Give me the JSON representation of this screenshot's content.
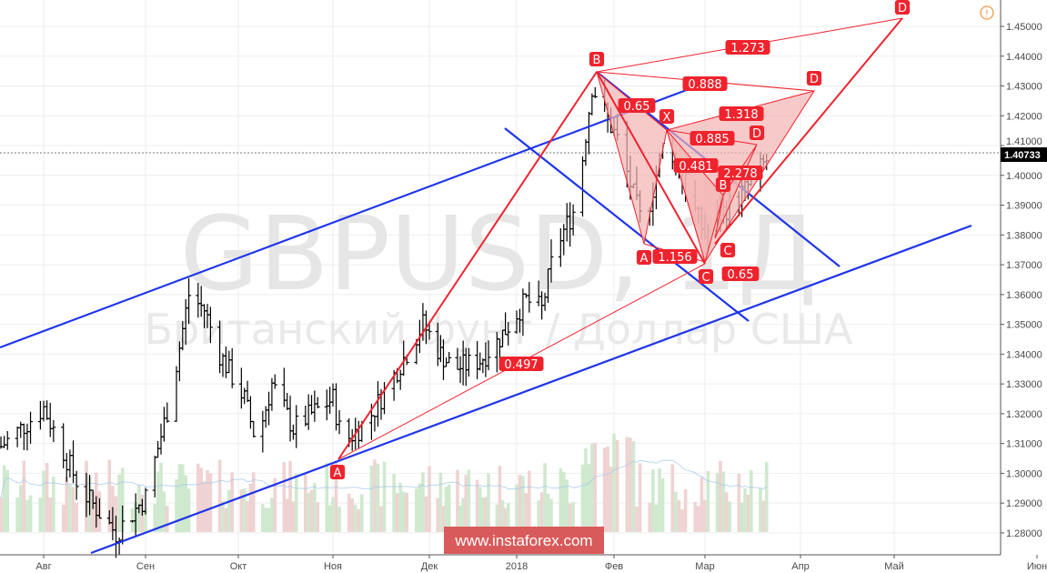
{
  "watermark": {
    "symbol": "GBPUSD, 1Д",
    "description": "Британский фунт / Доллар США"
  },
  "banner": {
    "text": "www.instaforex.com",
    "color": "#d95a5a"
  },
  "alert_icon": "exclamation-circle-icon",
  "colors": {
    "channel": "#1f35e8",
    "pattern": "#f0232d",
    "pattern_fill": "#f4b3b3",
    "volume_up": "#cfe9cf",
    "volume_down": "#efd3d3",
    "last_price_bg": "#000000"
  },
  "chart_data": {
    "type": "candlestick",
    "symbol": "GBPUSD",
    "interval": "1Д",
    "y_ticks": [
      "1.45000",
      "1.44000",
      "1.43000",
      "1.42000",
      "1.41000",
      "1.40000",
      "1.39000",
      "1.38000",
      "1.37000",
      "1.36000",
      "1.35000",
      "1.34000",
      "1.33000",
      "1.32000",
      "1.31000",
      "1.30000",
      "1.29000",
      "1.28000"
    ],
    "ylim": [
      1.272,
      1.463
    ],
    "last_price": "1.40733",
    "x_ticks": [
      "Авг",
      "Сен",
      "Окт",
      "Ноя",
      "Дек",
      "2018",
      "Фев",
      "Мар",
      "Апр",
      "Май",
      "Июн"
    ],
    "grid": true,
    "price_path": [
      [
        "2017-07-19",
        1.309
      ],
      [
        "2017-08-01",
        1.322
      ],
      [
        "2017-08-12",
        1.295
      ],
      [
        "2017-08-23",
        1.28
      ],
      [
        "2017-09-01",
        1.292
      ],
      [
        "2017-09-09",
        1.325
      ],
      [
        "2017-09-15",
        1.36
      ],
      [
        "2017-09-20",
        1.355
      ],
      [
        "2017-09-25",
        1.34
      ],
      [
        "2017-10-03",
        1.325
      ],
      [
        "2017-10-07",
        1.31
      ],
      [
        "2017-10-12",
        1.33
      ],
      [
        "2017-10-19",
        1.315
      ],
      [
        "2017-10-25",
        1.32
      ],
      [
        "2017-11-01",
        1.325
      ],
      [
        "2017-11-04",
        1.31
      ],
      [
        "2017-11-12",
        1.318
      ],
      [
        "2017-11-20",
        1.333
      ],
      [
        "2017-11-29",
        1.35
      ],
      [
        "2017-12-05",
        1.34
      ],
      [
        "2017-12-10",
        1.335
      ],
      [
        "2017-12-19",
        1.338
      ],
      [
        "2017-12-25",
        1.344
      ],
      [
        "2018-01-04",
        1.358
      ],
      [
        "2018-01-09",
        1.355
      ],
      [
        "2018-01-13",
        1.375
      ],
      [
        "2018-01-20",
        1.39
      ],
      [
        "2018-01-25",
        1.43
      ],
      [
        "2018-02-02",
        1.412
      ],
      [
        "2018-02-10",
        1.382
      ],
      [
        "2018-02-17",
        1.414
      ],
      [
        "2018-02-22",
        1.398
      ],
      [
        "2018-03-01",
        1.38
      ],
      [
        "2018-03-07",
        1.388
      ],
      [
        "2018-03-14",
        1.395
      ],
      [
        "2018-03-21",
        1.405
      ]
    ],
    "drawings": {
      "ratio_labels": [
        "1.273",
        "0.888",
        "0.65",
        "1.318",
        "0.885",
        "0.481",
        "2.278",
        "1.156",
        "0.65",
        "0.497"
      ],
      "point_labels": [
        "A",
        "B",
        "A",
        "X",
        "C",
        "B",
        "C",
        "D",
        "D",
        "D"
      ]
    }
  }
}
